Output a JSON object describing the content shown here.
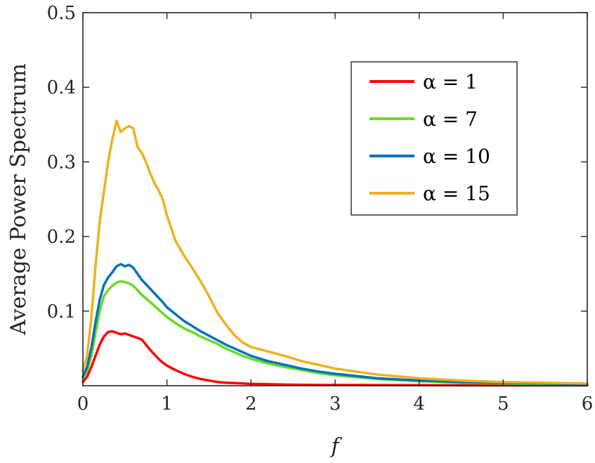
{
  "chart_data": {
    "type": "line",
    "title": "",
    "xlabel": "f",
    "ylabel": "Average Power Spectrum",
    "xlim": [
      0,
      6
    ],
    "ylim": [
      0,
      0.5
    ],
    "xticks": [
      "0",
      "1",
      "2",
      "3",
      "4",
      "5",
      "6"
    ],
    "yticks": [
      "0.1",
      "0.2",
      "0.3",
      "0.4",
      "0.5"
    ],
    "grid": false,
    "legend_position": "top-right",
    "series": [
      {
        "name": "α = 1",
        "color": "#ff0000",
        "x": [
          0,
          0.05,
          0.1,
          0.15,
          0.2,
          0.25,
          0.3,
          0.35,
          0.4,
          0.45,
          0.5,
          0.55,
          0.6,
          0.65,
          0.7,
          0.75,
          0.8,
          0.85,
          0.9,
          0.95,
          1.0,
          1.1,
          1.2,
          1.3,
          1.4,
          1.5,
          1.6,
          1.7,
          1.8,
          1.9,
          2.0,
          2.2,
          2.4,
          2.6,
          2.8,
          3.0,
          3.5,
          4.0,
          4.5,
          5.0,
          5.5,
          6.0
        ],
        "y": [
          0.005,
          0.012,
          0.025,
          0.04,
          0.055,
          0.066,
          0.072,
          0.073,
          0.071,
          0.069,
          0.07,
          0.068,
          0.066,
          0.064,
          0.062,
          0.055,
          0.048,
          0.042,
          0.036,
          0.031,
          0.027,
          0.021,
          0.016,
          0.012,
          0.009,
          0.007,
          0.005,
          0.004,
          0.0035,
          0.003,
          0.0025,
          0.002,
          0.0015,
          0.0012,
          0.001,
          0.001,
          0.0008,
          0.0007,
          0.0006,
          0.0005,
          0.0005,
          0.0005
        ]
      },
      {
        "name": "α = 7",
        "color": "#66dd22",
        "x": [
          0,
          0.05,
          0.1,
          0.15,
          0.2,
          0.25,
          0.3,
          0.35,
          0.4,
          0.45,
          0.5,
          0.55,
          0.6,
          0.65,
          0.7,
          0.75,
          0.8,
          0.85,
          0.9,
          0.95,
          1.0,
          1.1,
          1.2,
          1.3,
          1.4,
          1.5,
          1.6,
          1.7,
          1.8,
          1.9,
          2.0,
          2.2,
          2.4,
          2.6,
          2.8,
          3.0,
          3.5,
          4.0,
          4.5,
          5.0,
          5.5,
          6.0
        ],
        "y": [
          0.01,
          0.02,
          0.04,
          0.07,
          0.1,
          0.12,
          0.128,
          0.134,
          0.138,
          0.14,
          0.139,
          0.137,
          0.134,
          0.128,
          0.122,
          0.117,
          0.112,
          0.107,
          0.102,
          0.097,
          0.092,
          0.084,
          0.077,
          0.072,
          0.066,
          0.061,
          0.056,
          0.05,
          0.045,
          0.04,
          0.036,
          0.03,
          0.025,
          0.021,
          0.017,
          0.014,
          0.009,
          0.006,
          0.004,
          0.003,
          0.002,
          0.0015
        ]
      },
      {
        "name": "α = 10",
        "color": "#0072bd",
        "x": [
          0,
          0.05,
          0.1,
          0.15,
          0.2,
          0.25,
          0.3,
          0.35,
          0.4,
          0.45,
          0.5,
          0.55,
          0.6,
          0.65,
          0.7,
          0.75,
          0.8,
          0.85,
          0.9,
          0.95,
          1.0,
          1.1,
          1.2,
          1.3,
          1.4,
          1.5,
          1.6,
          1.7,
          1.8,
          1.9,
          2.0,
          2.2,
          2.4,
          2.6,
          2.8,
          3.0,
          3.5,
          4.0,
          4.5,
          5.0,
          5.5,
          6.0
        ],
        "y": [
          0.012,
          0.025,
          0.05,
          0.085,
          0.115,
          0.135,
          0.145,
          0.152,
          0.16,
          0.163,
          0.16,
          0.162,
          0.158,
          0.15,
          0.142,
          0.136,
          0.13,
          0.124,
          0.118,
          0.112,
          0.105,
          0.096,
          0.087,
          0.08,
          0.073,
          0.067,
          0.061,
          0.055,
          0.05,
          0.045,
          0.04,
          0.033,
          0.028,
          0.023,
          0.019,
          0.016,
          0.01,
          0.007,
          0.005,
          0.004,
          0.003,
          0.002
        ]
      },
      {
        "name": "α = 15",
        "color": "#edb120",
        "x": [
          0,
          0.05,
          0.1,
          0.15,
          0.2,
          0.25,
          0.3,
          0.35,
          0.4,
          0.45,
          0.5,
          0.55,
          0.6,
          0.65,
          0.7,
          0.75,
          0.8,
          0.85,
          0.9,
          0.95,
          1.0,
          1.1,
          1.2,
          1.3,
          1.4,
          1.5,
          1.6,
          1.7,
          1.8,
          1.9,
          2.0,
          2.2,
          2.4,
          2.6,
          2.8,
          3.0,
          3.5,
          4.0,
          4.5,
          5.0,
          5.5,
          6.0
        ],
        "y": [
          0.02,
          0.04,
          0.09,
          0.16,
          0.22,
          0.26,
          0.3,
          0.33,
          0.355,
          0.34,
          0.345,
          0.348,
          0.345,
          0.32,
          0.312,
          0.3,
          0.285,
          0.272,
          0.262,
          0.25,
          0.228,
          0.195,
          0.175,
          0.158,
          0.14,
          0.12,
          0.098,
          0.082,
          0.068,
          0.058,
          0.052,
          0.046,
          0.04,
          0.033,
          0.028,
          0.023,
          0.015,
          0.01,
          0.007,
          0.005,
          0.004,
          0.003
        ]
      }
    ]
  }
}
